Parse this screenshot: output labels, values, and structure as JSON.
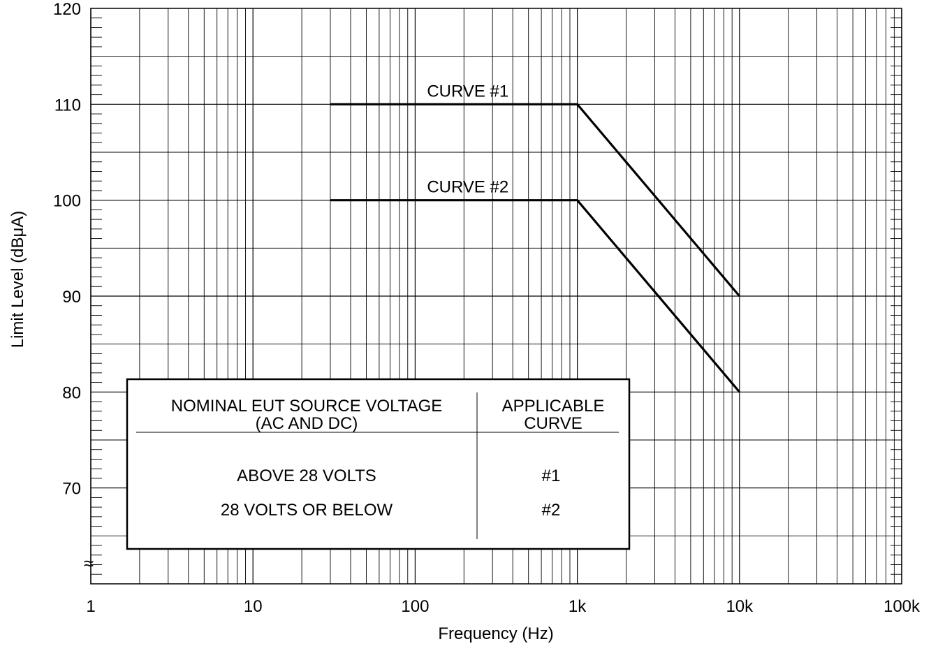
{
  "chart_data": {
    "type": "line",
    "title": "",
    "xlabel": "Frequency (Hz)",
    "ylabel": "Limit Level (dBμA)",
    "x_scale": "log",
    "xlim": [
      1,
      100000
    ],
    "ylim": [
      60,
      120
    ],
    "x_tick_values": [
      1,
      10,
      100,
      1000,
      10000,
      100000
    ],
    "x_tick_labels": [
      "1",
      "10",
      "100",
      "1k",
      "10k",
      "100k"
    ],
    "y_tick_values": [
      70,
      80,
      90,
      100,
      110,
      120
    ],
    "y_tick_labels": [
      "70",
      "80",
      "90",
      "100",
      "110",
      "120"
    ],
    "y_axis_break_symbol": "≈",
    "grid": true,
    "series": [
      {
        "name": "CURVE #1",
        "points": [
          [
            30,
            110
          ],
          [
            1000,
            110
          ],
          [
            10000,
            90
          ]
        ]
      },
      {
        "name": "CURVE #2",
        "points": [
          [
            30,
            100
          ],
          [
            1000,
            100
          ],
          [
            10000,
            80
          ]
        ]
      }
    ],
    "legend_table": {
      "header_left_line1": "NOMINAL EUT SOURCE VOLTAGE",
      "header_left_line2": "(AC AND DC)",
      "header_right_line1": "APPLICABLE",
      "header_right_line2": "CURVE",
      "rows": [
        {
          "voltage": "ABOVE 28 VOLTS",
          "curve": "#1"
        },
        {
          "voltage": "28 VOLTS OR BELOW",
          "curve": "#2"
        }
      ]
    }
  }
}
